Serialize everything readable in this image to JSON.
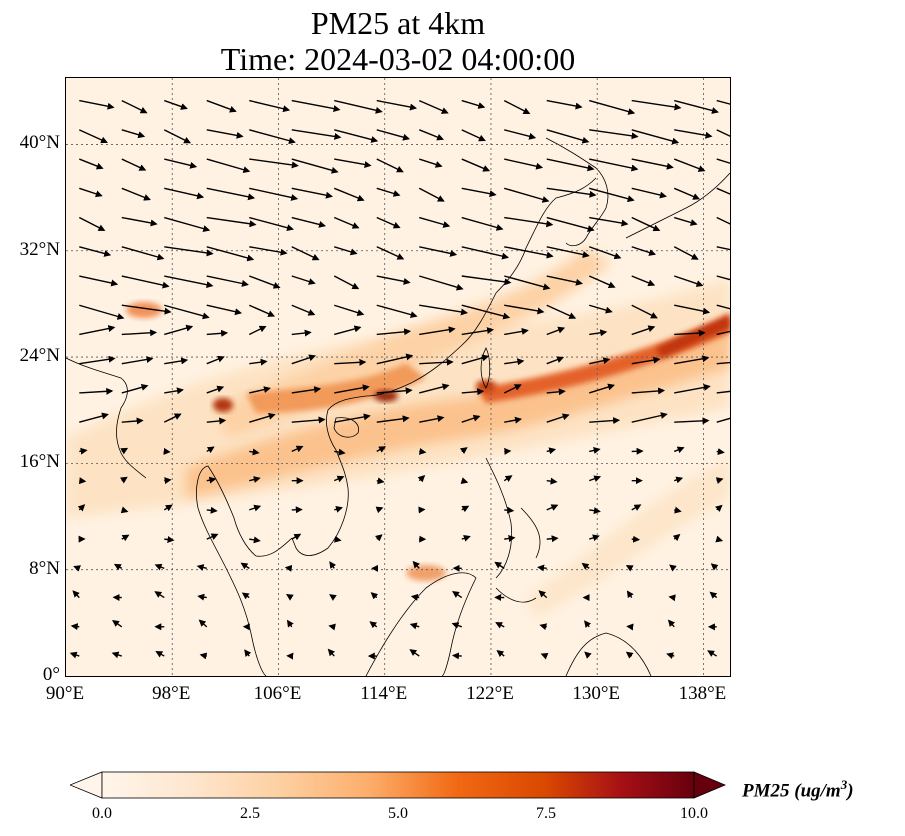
{
  "title": {
    "line1": "PM25 at 4km",
    "line2": "Time: 2024-03-02 04:00:00"
  },
  "map": {
    "projection": "PlateCarree",
    "lon_range": [
      90,
      140
    ],
    "lat_range": [
      0,
      45
    ],
    "gridlines": "dotted",
    "lat_ticks": [
      {
        "value": 40,
        "label": "40°N"
      },
      {
        "value": 32,
        "label": "32°N"
      },
      {
        "value": 24,
        "label": "24°N"
      },
      {
        "value": 16,
        "label": "16°N"
      },
      {
        "value": 8,
        "label": "8°N"
      },
      {
        "value": 0,
        "label": "0°"
      }
    ],
    "lon_ticks": [
      {
        "value": 90,
        "label": "90°E"
      },
      {
        "value": 98,
        "label": "98°E"
      },
      {
        "value": 106,
        "label": "106°E"
      },
      {
        "value": 114,
        "label": "114°E"
      },
      {
        "value": 122,
        "label": "122°E"
      },
      {
        "value": 130,
        "label": "130°E"
      },
      {
        "value": 138,
        "label": "138°E"
      }
    ],
    "plume_colors": [
      "#fff5eb",
      "#fdd9ab",
      "#fdae6b",
      "#f16913",
      "#d94801",
      "#a63603",
      "#7f0000"
    ],
    "wind": {
      "description_regions": [
        {
          "lat_min": 26,
          "lat_max": 45,
          "u": 5.5,
          "v": -1.2
        },
        {
          "lat_min": 18,
          "lat_max": 26,
          "u": 4.0,
          "v": 0.6
        },
        {
          "lat_min": 10,
          "lat_max": 18,
          "u": 1.2,
          "v": 0.2
        },
        {
          "lat_min": 0,
          "lat_max": 10,
          "u": -1.0,
          "v": 0.4
        }
      ]
    }
  },
  "colorbar": {
    "min": 0.0,
    "max": 10.0,
    "extend": "both",
    "colors": [
      "#fff5eb",
      "#fee6ce",
      "#fdd0a2",
      "#fdae6b",
      "#f16913",
      "#d94801",
      "#a50f15",
      "#67000d"
    ],
    "ticks": [
      {
        "value": 0.0,
        "label": "0.0"
      },
      {
        "value": 2.5,
        "label": "2.5"
      },
      {
        "value": 5.0,
        "label": "5.0"
      },
      {
        "value": 7.5,
        "label": "7.5"
      },
      {
        "value": 10.0,
        "label": "10.0"
      }
    ],
    "label": "PM25 (ug/m",
    "label_sup": "3",
    "label_close": ")"
  }
}
